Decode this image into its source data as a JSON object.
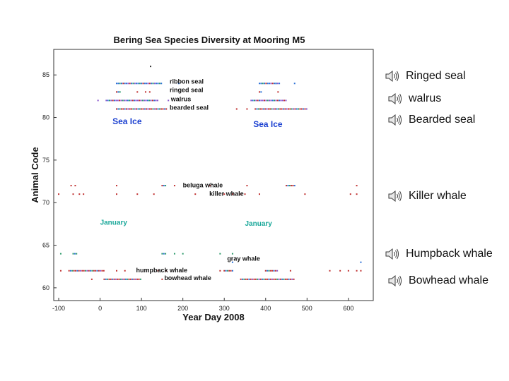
{
  "chart_data": {
    "type": "scatter",
    "title": "Bering Sea Species Diversity at Mooring M5",
    "xlabel": "Year Day 2008",
    "ylabel": "Animal Code",
    "xlim": [
      -112,
      660
    ],
    "ylim": [
      58.5,
      88
    ],
    "xticks": [
      -100,
      0,
      100,
      200,
      300,
      400,
      500,
      600
    ],
    "yticks": [
      60,
      65,
      70,
      75,
      80,
      85
    ],
    "grid": false,
    "legend": "none",
    "annotations": [
      {
        "id": "ribbon-seal",
        "text": "ribbon seal",
        "x": 168,
        "y": 84,
        "color": "#111111"
      },
      {
        "id": "ringed-seal",
        "text": "ringed seal",
        "x": 168,
        "y": 83,
        "color": "#111111"
      },
      {
        "id": "walrus",
        "text": "walrus",
        "x": 171,
        "y": 81.9,
        "color": "#111111"
      },
      {
        "id": "bearded-seal",
        "text": "bearded seal",
        "x": 168,
        "y": 80.9,
        "color": "#111111"
      },
      {
        "id": "sea-ice-1",
        "text": "Sea Ice",
        "x": 30,
        "y": 79.2,
        "color": "#1a3fd0"
      },
      {
        "id": "sea-ice-2",
        "text": "Sea Ice",
        "x": 370,
        "y": 78.9,
        "color": "#1a3fd0"
      },
      {
        "id": "beluga-whale",
        "text": "beluga whale",
        "x": 200,
        "y": 71.8,
        "color": "#111111"
      },
      {
        "id": "killer-whale",
        "text": "killer whale",
        "x": 264,
        "y": 70.8,
        "color": "#111111"
      },
      {
        "id": "january-1",
        "text": "January",
        "x": 0,
        "y": 67.4,
        "color": "#1aa89a"
      },
      {
        "id": "january-2",
        "text": "January",
        "x": 350,
        "y": 67.3,
        "color": "#1aa89a"
      },
      {
        "id": "gray-whale",
        "text": "gray whale",
        "x": 307,
        "y": 63.2,
        "color": "#111111"
      },
      {
        "id": "humpback-whale",
        "text": "humpback whale",
        "x": 87,
        "y": 61.8,
        "color": "#111111"
      },
      {
        "id": "bowhead-whale",
        "text": "bowhead whale",
        "x": 155,
        "y": 60.9,
        "color": "#111111"
      }
    ],
    "series": [
      {
        "code": 86,
        "color": "#333333",
        "segments": [
          [
            122,
            124
          ]
        ],
        "points": []
      },
      {
        "code": 84,
        "color": "#2b6fd6",
        "segments": [
          [
            40,
            150
          ],
          [
            385,
            435
          ]
        ],
        "points": [
          190,
          425,
          470
        ]
      },
      {
        "code": 83,
        "color": "#c03030",
        "segments": [
          [
            40,
            48
          ],
          [
            385,
            390
          ]
        ],
        "points": [
          90,
          110,
          120,
          430
        ]
      },
      {
        "code": 82,
        "color": "#8855cc",
        "segments": [
          [
            15,
            140
          ],
          [
            365,
            450
          ]
        ],
        "points": [
          -5,
          165
        ]
      },
      {
        "code": 81,
        "color": "#c03030",
        "segments": [
          [
            40,
            160
          ],
          [
            375,
            500
          ]
        ],
        "points": [
          330,
          355
        ]
      },
      {
        "code": 72,
        "color": "#c03030",
        "segments": [
          [
            150,
            160
          ],
          [
            450,
            470
          ]
        ],
        "points": [
          -70,
          -60,
          40,
          180,
          265,
          355,
          620
        ]
      },
      {
        "code": 71,
        "color": "#c03030",
        "segments": [],
        "points": [
          -100,
          -65,
          -50,
          -40,
          40,
          90,
          130,
          230,
          300,
          320,
          340,
          350,
          385,
          495,
          605,
          620
        ]
      },
      {
        "code": 64,
        "color": "#2b9a6a",
        "segments": [
          [
            -65,
            -55
          ],
          [
            150,
            160
          ]
        ],
        "points": [
          -95,
          180,
          200,
          290,
          320
        ]
      },
      {
        "code": 63,
        "color": "#2b6fd6",
        "segments": [],
        "points": [
          320,
          630
        ]
      },
      {
        "code": 62,
        "color": "#c03030",
        "segments": [
          [
            -75,
            10
          ],
          [
            300,
            320
          ],
          [
            400,
            430
          ]
        ],
        "points": [
          -95,
          40,
          60,
          140,
          160,
          290,
          460,
          555,
          580,
          600,
          620,
          630
        ]
      },
      {
        "code": 61,
        "color": "#c03030",
        "segments": [
          [
            10,
            100
          ],
          [
            340,
            470
          ]
        ],
        "points": [
          -20,
          150
        ]
      }
    ]
  },
  "sound_items": [
    {
      "id": "ringed-seal",
      "label": "Ringed seal"
    },
    {
      "id": "walrus",
      "label": "walrus"
    },
    {
      "id": "bearded-seal",
      "label": "Bearded seal"
    },
    {
      "id": "killer-whale",
      "label": "Killer whale"
    },
    {
      "id": "humpback-whale",
      "label": "Humpback whale"
    },
    {
      "id": "bowhead-whale",
      "label": "Bowhead whale"
    }
  ],
  "colors": {
    "speaker": "#3a3a3a",
    "axis": "#333333"
  }
}
